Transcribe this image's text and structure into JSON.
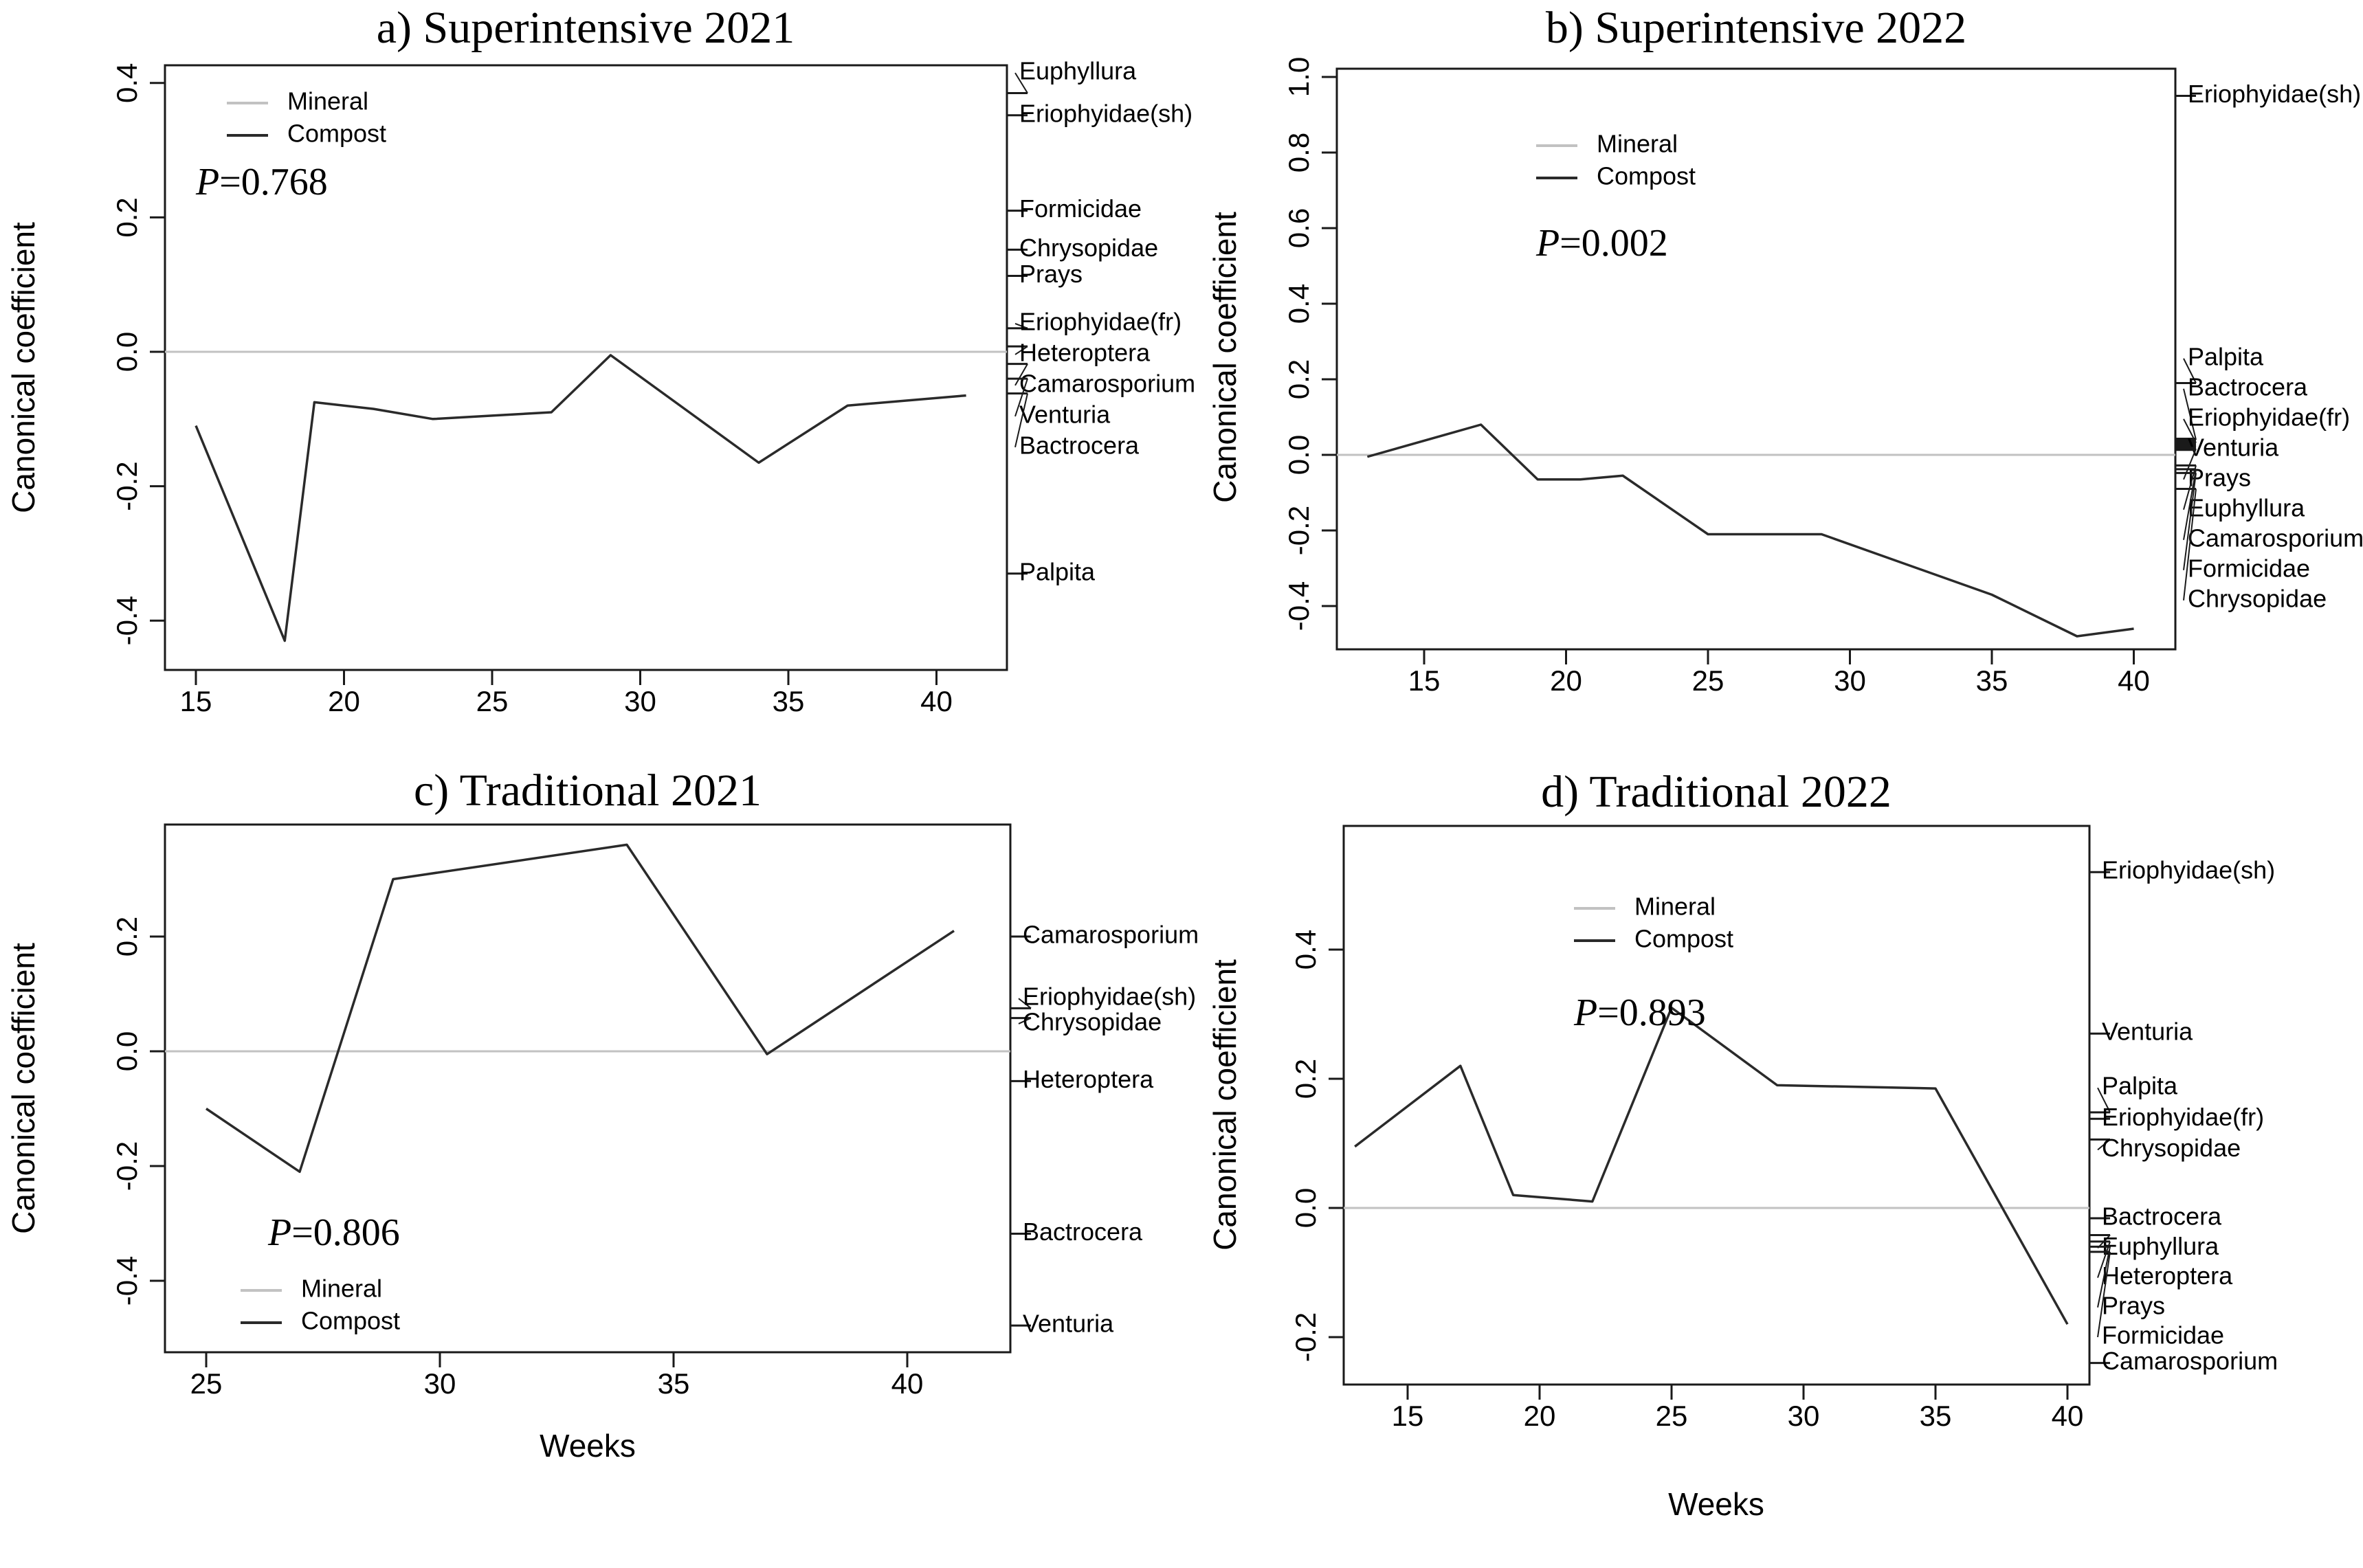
{
  "figure": {
    "background": "#ffffff",
    "colors": {
      "compost": "#2a2a2a",
      "mineral": "#c2c2c2",
      "frame": "#1a1a1a",
      "text": "#000000"
    }
  },
  "chart_data": [
    {
      "id": "a",
      "type": "line",
      "title": "a) Superintensive 2021",
      "p_label": "P=0.768",
      "ylabel": "Canonical coefficient",
      "xlabel": "",
      "xlim": [
        14,
        42.5
      ],
      "ylim": [
        -0.47,
        0.43
      ],
      "grid": false,
      "legend": {
        "position": "top-left",
        "entries": [
          "Mineral",
          "Compost"
        ]
      },
      "x_ticks": [
        {
          "v": 15,
          "label": "15"
        },
        {
          "v": 20,
          "label": "20"
        },
        {
          "v": 25,
          "label": "25"
        },
        {
          "v": 30,
          "label": "30"
        },
        {
          "v": 35,
          "label": "35"
        },
        {
          "v": 40,
          "label": "40"
        }
      ],
      "y_ticks": [
        {
          "v": 0.4,
          "label": "0.4"
        },
        {
          "v": 0.2,
          "label": "0.2"
        },
        {
          "v": 0.0,
          "label": "0.0"
        },
        {
          "v": -0.2,
          "label": "-0.2"
        },
        {
          "v": -0.4,
          "label": "-0.4"
        }
      ],
      "series": [
        {
          "name": "Mineral",
          "type": "hline",
          "y": 0
        },
        {
          "name": "Compost",
          "type": "line",
          "points": [
            [
              15,
              -0.11
            ],
            [
              18,
              -0.43
            ],
            [
              19,
              -0.075
            ],
            [
              21,
              -0.085
            ],
            [
              23,
              -0.1
            ],
            [
              25,
              -0.095
            ],
            [
              27,
              -0.09
            ],
            [
              29,
              -0.005
            ],
            [
              34,
              -0.165
            ],
            [
              37,
              -0.08
            ],
            [
              41,
              -0.065
            ]
          ]
        }
      ],
      "right_labels": [
        {
          "name": "Euphyllura",
          "tick": 0.385,
          "label_at": 0.415
        },
        {
          "name": "Eriophyidae(sh)",
          "tick": 0.352,
          "label_at": 0.352
        },
        {
          "name": "Formicidae",
          "tick": 0.21,
          "label_at": 0.21
        },
        {
          "name": "Chrysopidae",
          "tick": 0.152,
          "label_at": 0.152
        },
        {
          "name": "Prays",
          "tick": 0.113,
          "label_at": 0.113
        },
        {
          "name": "Eriophyidae(fr)",
          "tick": 0.035,
          "label_at": 0.042
        },
        {
          "name": "Heteroptera",
          "tick": 0.008,
          "label_at": -0.004
        },
        {
          "name": "Camarosporium",
          "tick": -0.018,
          "label_at": -0.05
        },
        {
          "name": "Venturia",
          "tick": -0.04,
          "label_at": -0.096
        },
        {
          "name": "Bactrocera",
          "tick": -0.062,
          "label_at": -0.142
        },
        {
          "name": "Palpita",
          "tick": -0.33,
          "label_at": -0.33
        }
      ]
    },
    {
      "id": "b",
      "type": "line",
      "title": "b) Superintensive 2022",
      "p_label": "P=0.002",
      "ylabel": "Canonical coefficient",
      "xlabel": "",
      "xlim": [
        12,
        41.5
      ],
      "ylim": [
        -0.52,
        1.03
      ],
      "grid": false,
      "legend": {
        "position": "top-left",
        "entries": [
          "Mineral",
          "Compost"
        ]
      },
      "x_ticks": [
        {
          "v": 15,
          "label": "15"
        },
        {
          "v": 20,
          "label": "20"
        },
        {
          "v": 25,
          "label": "25"
        },
        {
          "v": 30,
          "label": "30"
        },
        {
          "v": 35,
          "label": "35"
        },
        {
          "v": 40,
          "label": "40"
        }
      ],
      "y_ticks": [
        {
          "v": 1.0,
          "label": "1.0"
        },
        {
          "v": 0.8,
          "label": "0.8"
        },
        {
          "v": 0.6,
          "label": "0.6"
        },
        {
          "v": 0.4,
          "label": "0.4"
        },
        {
          "v": 0.2,
          "label": "0.2"
        },
        {
          "v": 0.0,
          "label": "0.0"
        },
        {
          "v": -0.2,
          "label": "-0.2"
        },
        {
          "v": -0.4,
          "label": "-0.4"
        }
      ],
      "series": [
        {
          "name": "Mineral",
          "type": "hline",
          "y": 0
        },
        {
          "name": "Compost",
          "type": "line",
          "points": [
            [
              13,
              -0.005
            ],
            [
              17,
              0.08
            ],
            [
              19,
              -0.065
            ],
            [
              20.5,
              -0.065
            ],
            [
              22,
              -0.055
            ],
            [
              25,
              -0.21
            ],
            [
              29,
              -0.21
            ],
            [
              35,
              -0.37
            ],
            [
              38,
              -0.48
            ],
            [
              40,
              -0.46
            ]
          ]
        }
      ],
      "right_labels": [
        {
          "name": "Eriophyidae(sh)",
          "tick": 0.95,
          "label_at": 0.95
        },
        {
          "name": "Palpita",
          "tick": 0.19,
          "label_at": 0.255
        },
        {
          "name": "Bactrocera",
          "tick": 0.04,
          "label_at": 0.175,
          "bold": true
        },
        {
          "name": "Eriophyidae(fr)",
          "tick": 0.032,
          "label_at": 0.095,
          "bold": true
        },
        {
          "name": "Venturia",
          "tick": 0.024,
          "label_at": 0.015,
          "bold": true
        },
        {
          "name": "Prays",
          "tick": 0.016,
          "label_at": -0.065,
          "bold": true
        },
        {
          "name": "Euphyllura",
          "tick": -0.028,
          "label_at": -0.145
        },
        {
          "name": "Camarosporium",
          "tick": -0.038,
          "label_at": -0.225
        },
        {
          "name": "Formicidae",
          "tick": -0.048,
          "label_at": -0.305
        },
        {
          "name": "Chrysopidae",
          "tick": -0.09,
          "label_at": -0.385
        }
      ]
    },
    {
      "id": "c",
      "type": "line",
      "title": "c) Traditional 2021",
      "p_label": "P=0.806",
      "ylabel": "Canonical coefficient",
      "xlabel": "Weeks",
      "xlim": [
        24.2,
        42.2
      ],
      "ylim": [
        -0.52,
        0.4
      ],
      "grid": false,
      "legend": {
        "position": "bottom-left",
        "entries": [
          "Mineral",
          "Compost"
        ]
      },
      "x_ticks": [
        {
          "v": 25,
          "label": "25"
        },
        {
          "v": 30,
          "label": "30"
        },
        {
          "v": 35,
          "label": "35"
        },
        {
          "v": 40,
          "label": "40"
        }
      ],
      "y_ticks": [
        {
          "v": 0.2,
          "label": "0.2"
        },
        {
          "v": 0.0,
          "label": "0.0"
        },
        {
          "v": -0.2,
          "label": "-0.2"
        },
        {
          "v": -0.4,
          "label": "-0.4"
        }
      ],
      "series": [
        {
          "name": "Mineral",
          "type": "hline",
          "y": 0
        },
        {
          "name": "Compost",
          "type": "line",
          "points": [
            [
              25,
              -0.1
            ],
            [
              27,
              -0.21
            ],
            [
              29,
              0.3
            ],
            [
              34,
              0.36
            ],
            [
              37,
              -0.005
            ],
            [
              41,
              0.21
            ]
          ]
        }
      ],
      "right_labels": [
        {
          "name": "Camarosporium",
          "tick": 0.2,
          "label_at": 0.2
        },
        {
          "name": "Eriophyidae(sh)",
          "tick": 0.075,
          "label_at": 0.092
        },
        {
          "name": "Chrysopidae",
          "tick": 0.058,
          "label_at": 0.048
        },
        {
          "name": "Heteroptera",
          "tick": -0.052,
          "label_at": -0.052
        },
        {
          "name": "Bactrocera",
          "tick": -0.318,
          "label_at": -0.318
        },
        {
          "name": "Venturia",
          "tick": -0.478,
          "label_at": -0.478
        }
      ]
    },
    {
      "id": "d",
      "type": "line",
      "title": "d) Traditional 2022",
      "p_label": "P=0.893",
      "ylabel": "Canonical coefficient",
      "xlabel": "Weeks",
      "xlim": [
        12.5,
        40.8
      ],
      "ylim": [
        -0.27,
        0.59
      ],
      "grid": false,
      "legend": {
        "position": "top-left",
        "entries": [
          "Mineral",
          "Compost"
        ]
      },
      "x_ticks": [
        {
          "v": 15,
          "label": "15"
        },
        {
          "v": 20,
          "label": "20"
        },
        {
          "v": 25,
          "label": "25"
        },
        {
          "v": 30,
          "label": "30"
        },
        {
          "v": 35,
          "label": "35"
        },
        {
          "v": 40,
          "label": "40"
        }
      ],
      "y_ticks": [
        {
          "v": 0.4,
          "label": "0.4"
        },
        {
          "v": 0.2,
          "label": "0.2"
        },
        {
          "v": 0.0,
          "label": "0.0"
        },
        {
          "v": -0.2,
          "label": "-0.2"
        }
      ],
      "series": [
        {
          "name": "Mineral",
          "type": "hline",
          "y": 0
        },
        {
          "name": "Compost",
          "type": "line",
          "points": [
            [
              13,
              0.095
            ],
            [
              17,
              0.22
            ],
            [
              19,
              0.02
            ],
            [
              22,
              0.01
            ],
            [
              25,
              0.31
            ],
            [
              29,
              0.19
            ],
            [
              35,
              0.185
            ],
            [
              40,
              -0.18
            ]
          ]
        }
      ],
      "right_labels": [
        {
          "name": "Eriophyidae(sh)",
          "tick": 0.52,
          "label_at": 0.52
        },
        {
          "name": "Venturia",
          "tick": 0.27,
          "label_at": 0.27
        },
        {
          "name": "Palpita",
          "tick": 0.148,
          "label_at": 0.186
        },
        {
          "name": "Eriophyidae(fr)",
          "tick": 0.138,
          "label_at": 0.138
        },
        {
          "name": "Chrysopidae",
          "tick": 0.106,
          "label_at": 0.09
        },
        {
          "name": "Bactrocera",
          "tick": -0.016,
          "label_at": -0.016
        },
        {
          "name": "Euphyllura",
          "tick": -0.042,
          "label_at": -0.062
        },
        {
          "name": "Heteroptera",
          "tick": -0.052,
          "label_at": -0.108
        },
        {
          "name": "Prays",
          "tick": -0.06,
          "label_at": -0.154
        },
        {
          "name": "Formicidae",
          "tick": -0.068,
          "label_at": -0.2
        },
        {
          "name": "Camarosporium",
          "tick": -0.24,
          "label_at": -0.24
        }
      ]
    }
  ]
}
